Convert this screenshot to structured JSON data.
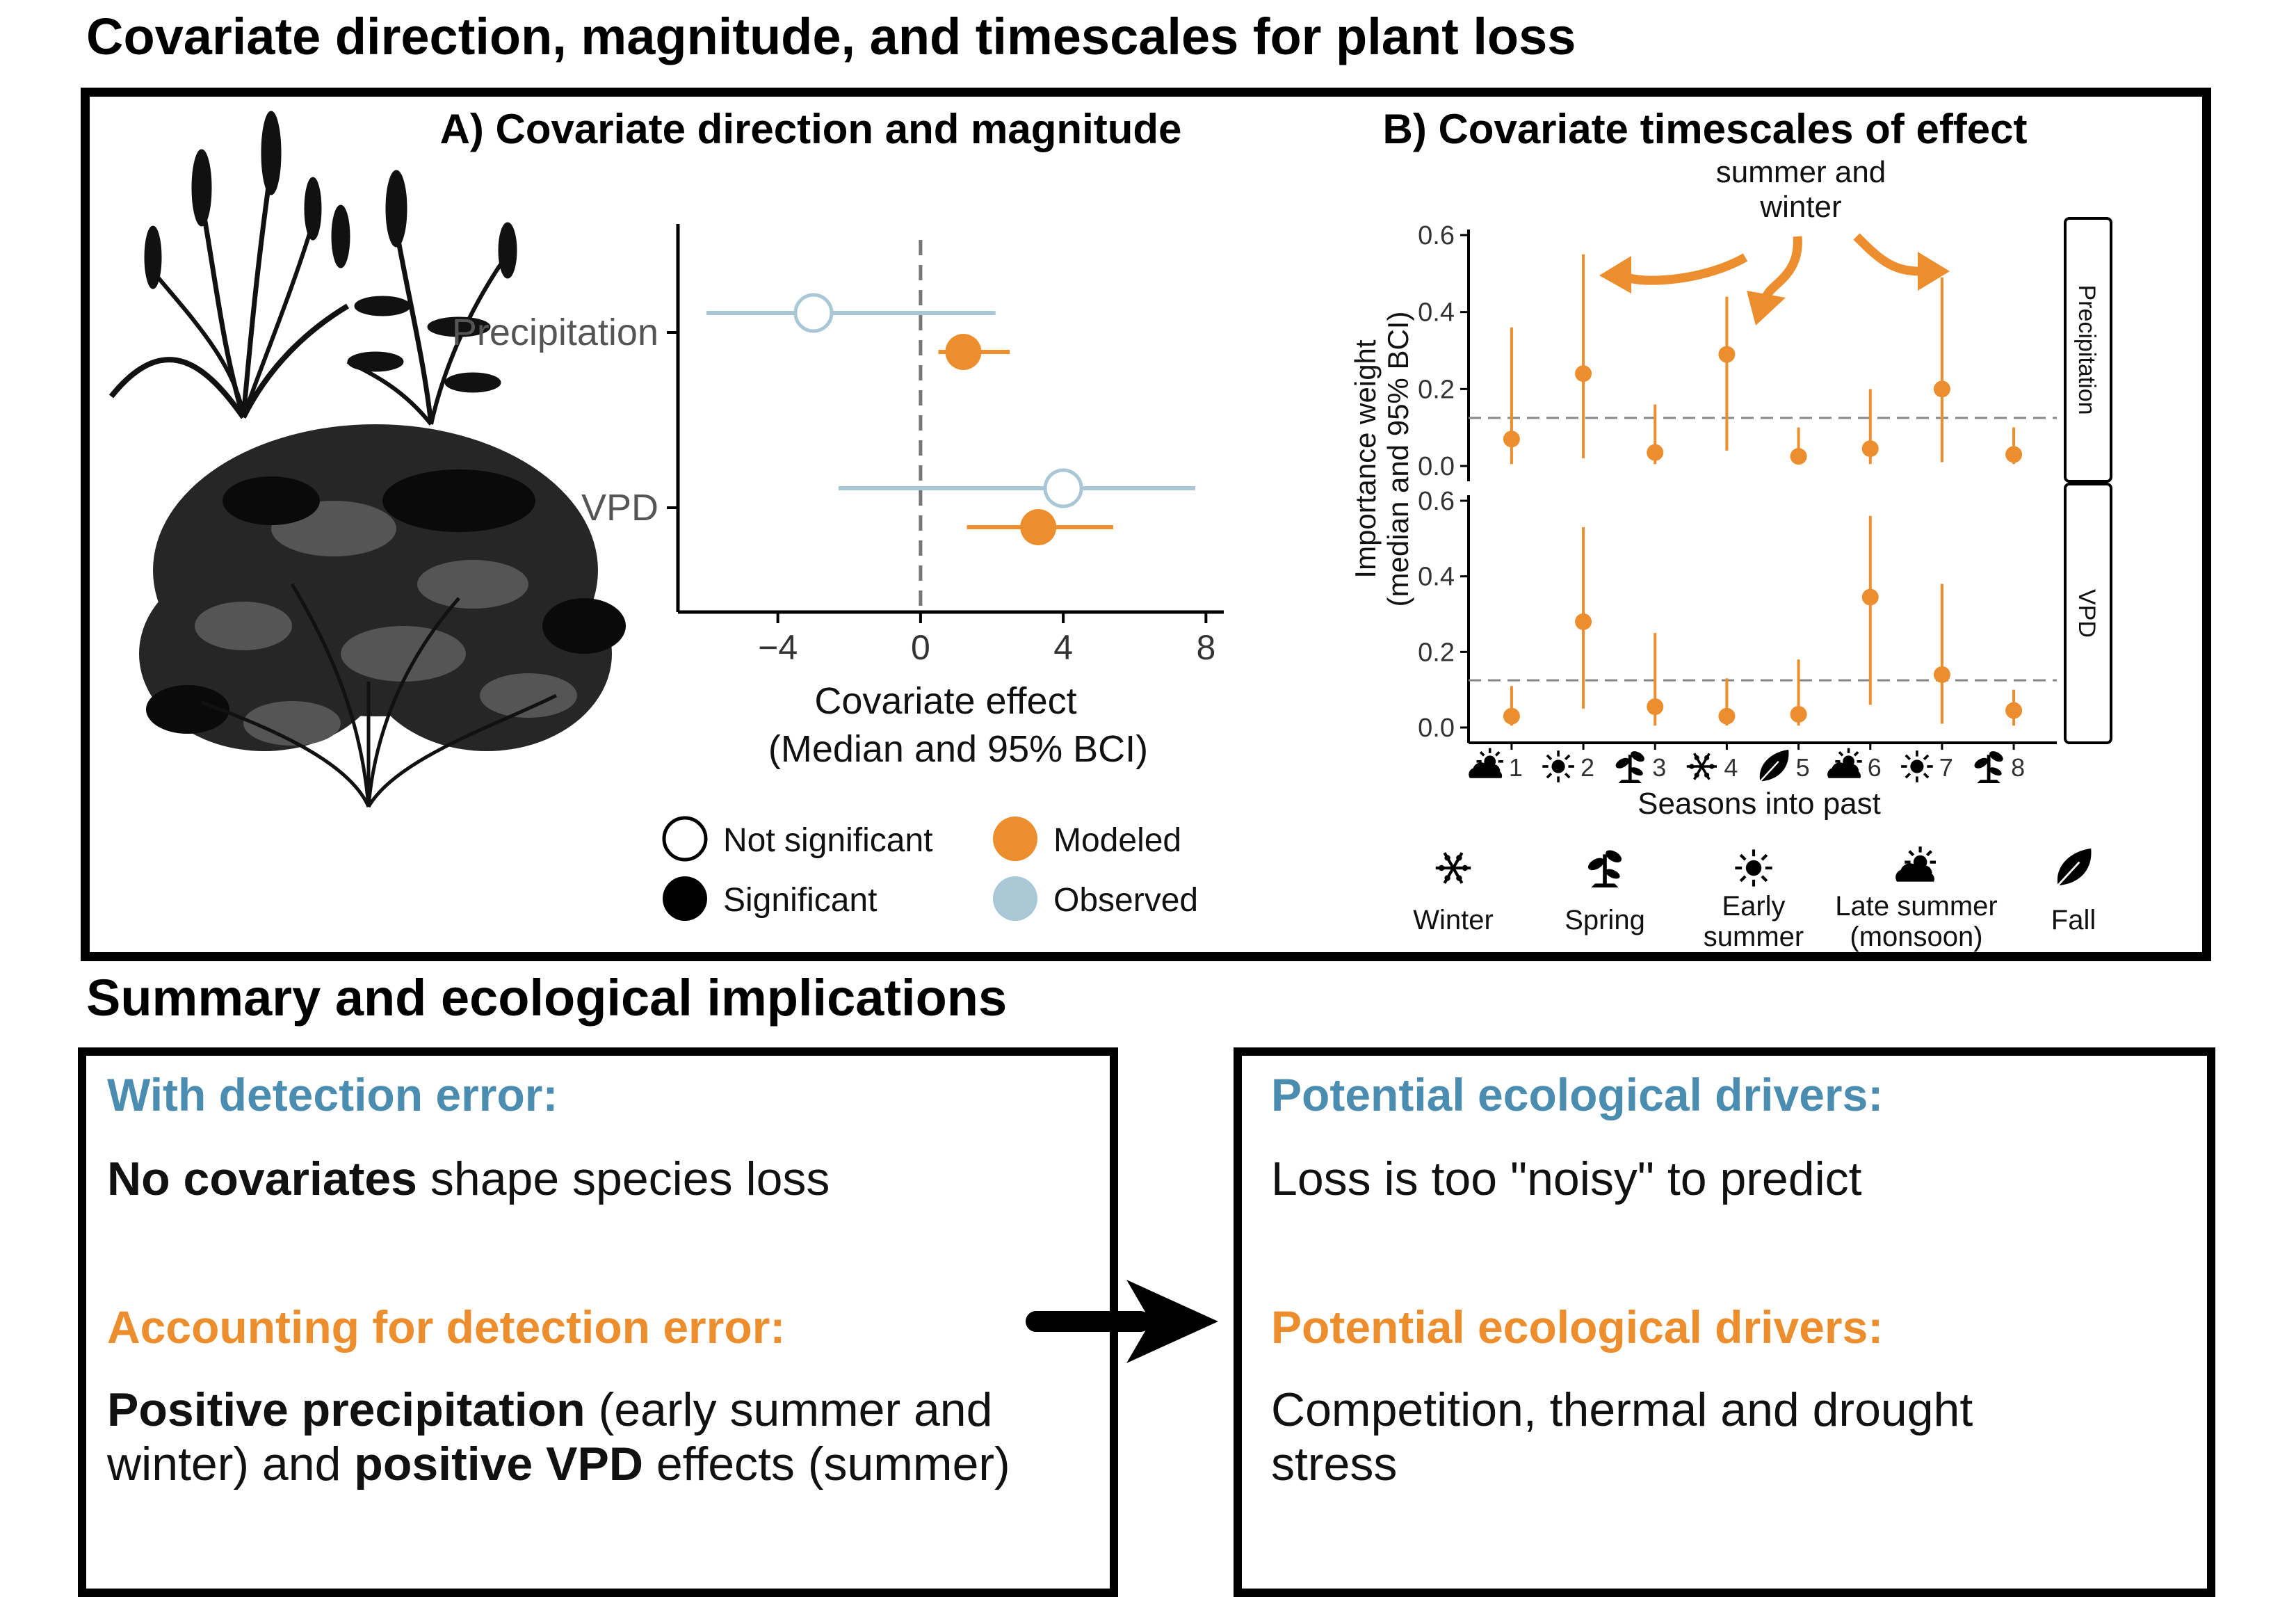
{
  "title": "Covariate direction, magnitude, and timescales for plant loss",
  "panel_a": {
    "title": "A) Covariate direction and magnitude"
  },
  "panel_b": {
    "title": "B) Covariate timescales of effect",
    "annotation_line1": "summer and",
    "annotation_line2": "winter",
    "ylabel_line1": "Importance weight",
    "ylabel_line2": "(median and 95% BCI)",
    "xlabel": "Seasons into past",
    "ytick_labels": [
      "0.0",
      "0.2",
      "0.4",
      "0.6"
    ],
    "facet_labels": [
      "Precipitation",
      "VPD"
    ],
    "season_icons": [
      "late-summer-icon",
      "early-summer-icon",
      "spring-icon",
      "winter-icon",
      "fall-icon",
      "late-summer-icon",
      "early-summer-icon",
      "spring-icon"
    ]
  },
  "legend": {
    "not_significant": "Not significant",
    "significant": "Significant",
    "modeled": "Modeled",
    "observed": "Observed",
    "modeled_color": "#ec8e2d",
    "observed_color": "#a9c7d5"
  },
  "season_legend": [
    {
      "icon": "winter-icon",
      "label": [
        "Winter"
      ]
    },
    {
      "icon": "spring-icon",
      "label": [
        "Spring"
      ]
    },
    {
      "icon": "early-summer-icon",
      "label": [
        "Early",
        "summer"
      ]
    },
    {
      "icon": "late-summer-icon",
      "label": [
        "Late summer",
        "(monsoon)"
      ]
    },
    {
      "icon": "fall-icon",
      "label": [
        "Fall"
      ]
    }
  ],
  "summary": {
    "title": "Summary and ecological implications",
    "left": {
      "h1": "With detection error:",
      "t1_bold": "No covariates",
      "t1_rest": " shape species loss",
      "h2": "Accounting for detection error:",
      "t2_bold_a": "Positive precipitation",
      "t2_rest_a": " (early summer and",
      "t2_rest_b": "winter) and ",
      "t2_bold_b": "positive VPD",
      "t2_rest_c": " effects (summer)"
    },
    "right": {
      "h1": "Potential ecological drivers:",
      "t1": "Loss is too \"noisy\" to predict",
      "h2": "Potential ecological drivers:",
      "t2_line1": "Competition, thermal and drought",
      "t2_line2": "stress"
    }
  },
  "chart_data": [
    {
      "type": "scatter",
      "title": "A) Covariate direction and magnitude",
      "xlabel": "Covariate effect",
      "xlabel2": "(Median and 95% BCI)",
      "xticks": [
        -4,
        0,
        4,
        8
      ],
      "xtick_labels": [
        "−4",
        "0",
        "4",
        "8"
      ],
      "xlim": [
        -6.8,
        8.5
      ],
      "categories": [
        "Precipitation",
        "VPD"
      ],
      "reference_line": 0,
      "series": [
        {
          "name": "Observed",
          "significant": false,
          "color": "#a9c7d5",
          "points": [
            {
              "category": "Precipitation",
              "median": -3.0,
              "low": -6.0,
              "high": 2.1
            },
            {
              "category": "VPD",
              "median": 4.0,
              "low": -2.3,
              "high": 7.7
            }
          ]
        },
        {
          "name": "Modeled",
          "significant": true,
          "color": "#ec8e2d",
          "points": [
            {
              "category": "Precipitation",
              "median": 1.2,
              "low": 0.5,
              "high": 2.5
            },
            {
              "category": "VPD",
              "median": 3.3,
              "low": 1.3,
              "high": 5.4
            }
          ]
        }
      ]
    },
    {
      "type": "scatter",
      "title": "B) Covariate timescales of effect",
      "xlabel": "Seasons into past",
      "ylabel": "Importance weight (median and 95% BCI)",
      "x": [
        1,
        2,
        3,
        4,
        5,
        6,
        7,
        8
      ],
      "ylim": [
        0,
        0.6
      ],
      "yticks": [
        0,
        0.2,
        0.4,
        0.6
      ],
      "reference_line": 0.125,
      "color": "#ec8e2d",
      "facets": [
        {
          "name": "Precipitation",
          "median": [
            0.07,
            0.24,
            0.035,
            0.29,
            0.025,
            0.045,
            0.2,
            0.03
          ],
          "low": [
            0.005,
            0.02,
            0.005,
            0.04,
            0.005,
            0.005,
            0.01,
            0.005
          ],
          "high": [
            0.36,
            0.55,
            0.16,
            0.44,
            0.1,
            0.2,
            0.49,
            0.1
          ]
        },
        {
          "name": "VPD",
          "median": [
            0.03,
            0.28,
            0.055,
            0.03,
            0.035,
            0.345,
            0.14,
            0.045
          ],
          "low": [
            0.005,
            0.05,
            0.005,
            0.005,
            0.005,
            0.06,
            0.01,
            0.005
          ],
          "high": [
            0.11,
            0.53,
            0.25,
            0.13,
            0.18,
            0.56,
            0.38,
            0.1
          ]
        }
      ]
    }
  ]
}
